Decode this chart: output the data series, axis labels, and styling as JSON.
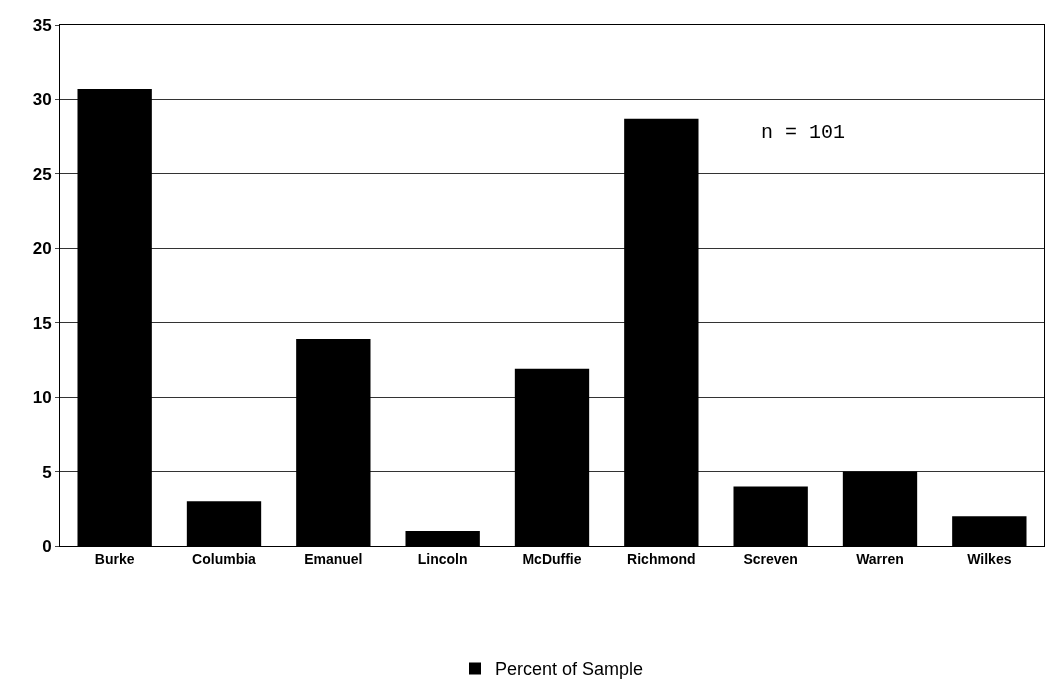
{
  "chart_data": {
    "type": "bar",
    "categories": [
      "Burke",
      "Columbia",
      "Emanuel",
      "Lincoln",
      "McDuffie",
      "Richmond",
      "Screven",
      "Warren",
      "Wilkes"
    ],
    "series": [
      {
        "name": "Percent of Sample",
        "color": "#000000",
        "values": [
          30.7,
          3.0,
          13.9,
          1.0,
          11.9,
          28.7,
          4.0,
          5.0,
          2.0
        ]
      }
    ],
    "ylim": [
      0,
      35
    ],
    "yticks": [
      0,
      5,
      10,
      15,
      20,
      25,
      30,
      35
    ],
    "grid": "y",
    "legend": "bottom",
    "annotations": [
      "n = 101"
    ]
  }
}
